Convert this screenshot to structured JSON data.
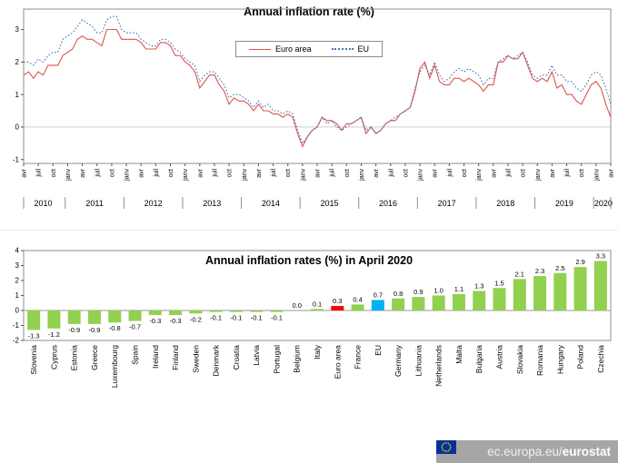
{
  "footer": {
    "url_prefix": "ec.europa.eu/",
    "brand": "eurostat"
  },
  "chart_data": [
    {
      "type": "line",
      "title": "Annual inflation rate (%)",
      "ylim": [
        -1.12,
        3.63
      ],
      "yticks": [
        -1,
        0,
        1,
        2,
        3
      ],
      "x_tick_step": 3,
      "x_tick_labels": [
        "avr",
        "juil",
        "oct",
        "janv",
        "avr",
        "juil",
        "oct",
        "janv",
        "avr",
        "juil",
        "oct",
        "janv",
        "avr",
        "juil",
        "oct",
        "janv",
        "avr",
        "juil",
        "oct",
        "janv",
        "avr",
        "juil",
        "oct",
        "janv",
        "avr",
        "juil",
        "oct",
        "janv",
        "avr",
        "juil",
        "oct",
        "janv",
        "avr",
        "juil",
        "oct",
        "janv",
        "avr",
        "juil",
        "oct",
        "janv",
        "avr"
      ],
      "years": [
        {
          "label": "2010",
          "start": 0,
          "end": 8
        },
        {
          "label": "2011",
          "start": 9,
          "end": 20
        },
        {
          "label": "2012",
          "start": 21,
          "end": 32
        },
        {
          "label": "2013",
          "start": 33,
          "end": 44
        },
        {
          "label": "2014",
          "start": 45,
          "end": 56
        },
        {
          "label": "2015",
          "start": 57,
          "end": 68
        },
        {
          "label": "2016",
          "start": 69,
          "end": 80
        },
        {
          "label": "2017",
          "start": 81,
          "end": 92
        },
        {
          "label": "2018",
          "start": 93,
          "end": 104
        },
        {
          "label": "2019",
          "start": 105,
          "end": 116
        },
        {
          "label": "2020",
          "start": 117,
          "end": 120
        }
      ],
      "series": [
        {
          "name": "Euro area",
          "color": "#e0524e",
          "dotted": false,
          "values": [
            1.6,
            1.7,
            1.5,
            1.7,
            1.6,
            1.9,
            1.9,
            1.9,
            2.2,
            2.3,
            2.4,
            2.7,
            2.8,
            2.7,
            2.7,
            2.6,
            2.5,
            3.0,
            3.0,
            3.0,
            2.7,
            2.7,
            2.7,
            2.7,
            2.6,
            2.4,
            2.4,
            2.4,
            2.6,
            2.6,
            2.5,
            2.2,
            2.2,
            2.0,
            1.9,
            1.7,
            1.2,
            1.4,
            1.6,
            1.6,
            1.3,
            1.1,
            0.7,
            0.9,
            0.8,
            0.8,
            0.7,
            0.5,
            0.7,
            0.5,
            0.5,
            0.4,
            0.4,
            0.3,
            0.4,
            0.3,
            -0.2,
            -0.6,
            -0.3,
            -0.1,
            0.0,
            0.3,
            0.2,
            0.2,
            0.1,
            -0.1,
            0.1,
            0.1,
            0.2,
            0.3,
            -0.2,
            0.0,
            -0.2,
            -0.1,
            0.1,
            0.2,
            0.2,
            0.4,
            0.5,
            0.6,
            1.1,
            1.8,
            2.0,
            1.5,
            1.9,
            1.4,
            1.3,
            1.3,
            1.5,
            1.5,
            1.4,
            1.5,
            1.4,
            1.3,
            1.1,
            1.3,
            1.3,
            2.0,
            2.0,
            2.2,
            2.1,
            2.1,
            2.3,
            1.9,
            1.5,
            1.4,
            1.5,
            1.4,
            1.7,
            1.2,
            1.3,
            1.0,
            1.0,
            0.8,
            0.7,
            1.0,
            1.3,
            1.4,
            1.2,
            0.7,
            0.3
          ]
        },
        {
          "name": "EU",
          "color": "#4576b5",
          "dotted": true,
          "values": [
            2.0,
            2.0,
            1.9,
            2.1,
            2.0,
            2.2,
            2.3,
            2.3,
            2.7,
            2.8,
            2.9,
            3.1,
            3.3,
            3.2,
            3.1,
            2.9,
            2.9,
            3.3,
            3.4,
            3.4,
            3.0,
            2.9,
            2.9,
            2.9,
            2.7,
            2.6,
            2.5,
            2.5,
            2.7,
            2.7,
            2.6,
            2.4,
            2.3,
            2.1,
            2.0,
            1.9,
            1.4,
            1.6,
            1.7,
            1.7,
            1.5,
            1.3,
            0.9,
            1.0,
            1.0,
            0.9,
            0.8,
            0.6,
            0.8,
            0.6,
            0.7,
            0.5,
            0.5,
            0.4,
            0.5,
            0.4,
            -0.1,
            -0.5,
            -0.3,
            -0.1,
            0.0,
            0.3,
            0.1,
            0.2,
            0.0,
            -0.1,
            0.0,
            0.1,
            0.2,
            0.3,
            -0.1,
            0.0,
            -0.2,
            -0.1,
            0.1,
            0.2,
            0.3,
            0.4,
            0.5,
            0.6,
            1.2,
            1.7,
            1.9,
            1.6,
            2.0,
            1.6,
            1.4,
            1.5,
            1.7,
            1.8,
            1.7,
            1.8,
            1.7,
            1.6,
            1.3,
            1.5,
            1.5,
            2.0,
            2.1,
            2.2,
            2.1,
            2.2,
            2.3,
            2.0,
            1.6,
            1.5,
            1.6,
            1.6,
            1.9,
            1.6,
            1.6,
            1.4,
            1.4,
            1.2,
            1.1,
            1.3,
            1.6,
            1.7,
            1.6,
            1.2,
            0.7
          ]
        }
      ]
    },
    {
      "type": "bar",
      "title": "Annual inflation rates (%) in April 2020",
      "ylim": [
        -2,
        4
      ],
      "yticks": [
        -2,
        -1,
        0,
        1,
        2,
        3,
        4
      ],
      "categories": [
        "Slovenia",
        "Cyprus",
        "Estonia",
        "Greece",
        "Luxembourg",
        "Spain",
        "Ireland",
        "Finland",
        "Sweden",
        "Denmark",
        "Croatia",
        "Latvia",
        "Portugal",
        "Belgium",
        "Italy",
        "Euro area",
        "France",
        "EU",
        "Germany",
        "Lithuania",
        "Netherlands",
        "Malta",
        "Bulgaria",
        "Austria",
        "Slovakia",
        "Romania",
        "Hungary",
        "Poland",
        "Czechia"
      ],
      "values": [
        -1.3,
        -1.2,
        -0.9,
        -0.9,
        -0.8,
        -0.7,
        -0.3,
        -0.3,
        -0.2,
        -0.1,
        -0.1,
        -0.1,
        -0.1,
        0.0,
        0.1,
        0.3,
        0.4,
        0.7,
        0.8,
        0.9,
        1.0,
        1.1,
        1.3,
        1.5,
        2.1,
        2.3,
        2.5,
        2.9,
        3.3
      ],
      "colors": {
        "default": "#92d050",
        "Euro area": "#ff0000",
        "EU": "#00b0f0"
      }
    }
  ],
  "flag_colors": {
    "field": "#003399",
    "stars": "#ffcc00"
  }
}
